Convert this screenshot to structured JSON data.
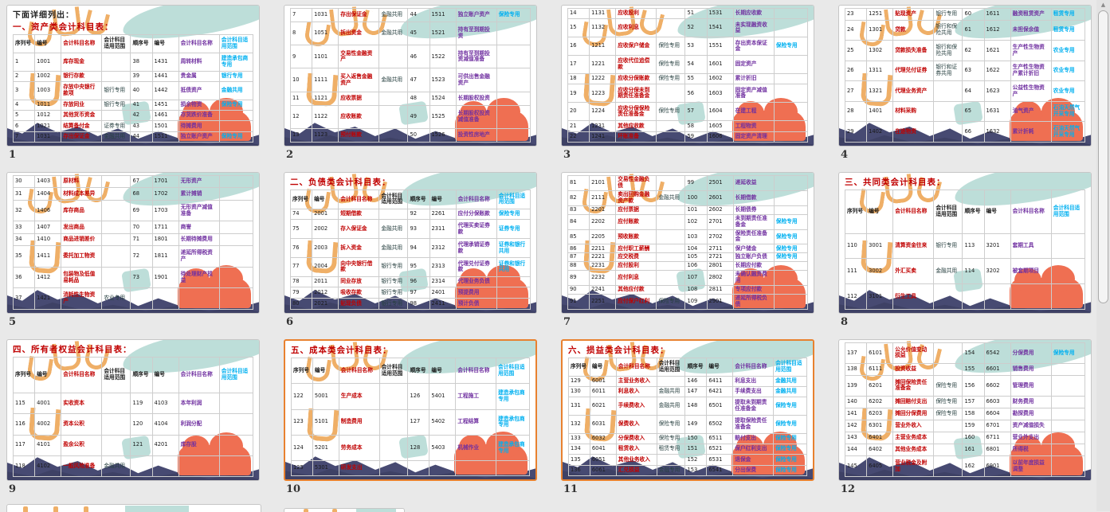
{
  "view": "slide-sorter",
  "colors": {
    "accent_orange": "#E8812F",
    "red": "#C00000",
    "purple": "#7030A0",
    "cyan": "#00B0F0",
    "scope_left": "#253E3E",
    "navy": "#474A72",
    "teal": "#BDDED9",
    "coral": "#EF6F52",
    "tan": "#EFAF67"
  },
  "scrollbar": {
    "up_arrow": "▲"
  },
  "table_headers": [
    "序列号",
    "编号",
    "会计科目名称",
    "会计科目适用范围",
    "顺序号",
    "编号",
    "会计科目名称",
    "会计科目适用范围"
  ],
  "slides": [
    {
      "number": "1",
      "selected": false,
      "pretitle": "下面详细列出：",
      "title": "一、资产类会计科目表：",
      "has_header": true,
      "rows": [
        [
          "1",
          "1001",
          "库存现金",
          "",
          "38",
          "1431",
          "周转材料",
          "建造承包商专用"
        ],
        [
          "2",
          "1002",
          "银行存款",
          "",
          "39",
          "1441",
          "贵金属",
          "银行专用"
        ],
        [
          "3",
          "1003",
          "存放中央银行款项",
          "银行专用",
          "40",
          "1442",
          "抵债资产",
          "金融共用"
        ],
        [
          "4",
          "1011",
          "存放同业",
          "银行专用",
          "41",
          "1451",
          "损余物资",
          "保险专用"
        ],
        [
          "5",
          "1012",
          "其他货币资金",
          "",
          "42",
          "1461",
          "存货跌价准备",
          ""
        ],
        [
          "6",
          "1021",
          "结算备付金",
          "证券专用",
          "43",
          "1501",
          "待摊费用",
          ""
        ],
        [
          "7",
          "1031",
          "存出保证金",
          "金融共用",
          "44",
          "1511",
          "独立账户资产",
          "保险专用"
        ]
      ]
    },
    {
      "number": "2",
      "selected": false,
      "has_header": false,
      "rows": [
        [
          "7",
          "1031",
          "存出保证金",
          "金融共用",
          "44",
          "1511",
          "独立账户资产",
          "保险专用"
        ],
        [
          "8",
          "1051",
          "拆出资金",
          "金融共用",
          "45",
          "1521",
          "持有至到期投资",
          ""
        ],
        [
          "9",
          "1101",
          "交易性金融资产",
          "",
          "46",
          "1522",
          "持有至到期投资减值准备",
          ""
        ],
        [
          "10",
          "1111",
          "买入返售金融资产",
          "金融共用",
          "47",
          "1523",
          "可供出售金融资产",
          ""
        ],
        [
          "11",
          "1121",
          "应收票据",
          "",
          "48",
          "1524",
          "长期股权投资",
          ""
        ],
        [
          "12",
          "1122",
          "应收账款",
          "",
          "49",
          "1525",
          "长期股权投资减值准备",
          ""
        ],
        [
          "13",
          "1123",
          "预付账款",
          "",
          "50",
          "1526",
          "投资性房地产",
          ""
        ]
      ]
    },
    {
      "number": "3",
      "selected": false,
      "has_header": false,
      "rows": [
        [
          "14",
          "1131",
          "应收股利",
          "",
          "51",
          "1531",
          "长期应收款",
          ""
        ],
        [
          "15",
          "1132",
          "应收利息",
          "",
          "52",
          "1541",
          "未实现融资收益",
          ""
        ],
        [
          "16",
          "1211",
          "应收保户储金",
          "保险专用",
          "53",
          "1551",
          "存出资本保证金",
          "保险专用"
        ],
        [
          "17",
          "1221",
          "应收代位追偿款",
          "保险专用",
          "54",
          "1601",
          "固定资产",
          ""
        ],
        [
          "18",
          "1222",
          "应收分保账款",
          "保险专用",
          "55",
          "1602",
          "累计折旧",
          ""
        ],
        [
          "19",
          "1223",
          "应收分保未到期责任准备金",
          "",
          "56",
          "1603",
          "固定资产减值准备",
          ""
        ],
        [
          "20",
          "1224",
          "应收分保保险责任准备金",
          "保险专用",
          "57",
          "1604",
          "在建工程",
          ""
        ],
        [
          "21",
          "1231",
          "其他应收款",
          "",
          "58",
          "1605",
          "工程物资",
          ""
        ],
        [
          "22",
          "1241",
          "坏账准备",
          "",
          "59",
          "1606",
          "固定资产清理",
          ""
        ]
      ]
    },
    {
      "number": "4",
      "selected": false,
      "has_header": false,
      "rows": [
        [
          "23",
          "1251",
          "贴现资产",
          "银行专用",
          "60",
          "1611",
          "融资租赁资产",
          "租赁专用"
        ],
        [
          "24",
          "1301",
          "贷款",
          "银行和保险共用",
          "61",
          "1612",
          "未担保余值",
          "租赁专用"
        ],
        [
          "25",
          "1302",
          "贷款损失准备",
          "银行和保险共用",
          "62",
          "1621",
          "生产性生物资产",
          "农业专用"
        ],
        [
          "26",
          "1311",
          "代理兑付证券",
          "银行和证券共用",
          "63",
          "1622",
          "生产性生物资产累计折旧",
          "农业专用"
        ],
        [
          "27",
          "1321",
          "代理业务资产",
          "",
          "64",
          "1623",
          "公益性生物资产",
          "农业专用"
        ],
        [
          "28",
          "1401",
          "材料采购",
          "",
          "65",
          "1631",
          "油气资产",
          "石油天然气开采专用"
        ],
        [
          "29",
          "1402",
          "在途物资",
          "",
          "66",
          "1632",
          "累计折耗",
          "石油天然气开采专用"
        ]
      ]
    },
    {
      "number": "5",
      "selected": false,
      "has_header": false,
      "rows": [
        [
          "30",
          "1403",
          "原材料",
          "",
          "67",
          "1701",
          "无形资产",
          ""
        ],
        [
          "31",
          "1404",
          "材料成本差异",
          "",
          "68",
          "1702",
          "累计摊销",
          ""
        ],
        [
          "32",
          "1406",
          "库存商品",
          "",
          "69",
          "1703",
          "无形资产减值准备",
          ""
        ],
        [
          "33",
          "1407",
          "发出商品",
          "",
          "70",
          "1711",
          "商誉",
          ""
        ],
        [
          "34",
          "1410",
          "商品进销差价",
          "",
          "71",
          "1801",
          "长期待摊费用",
          ""
        ],
        [
          "35",
          "1411",
          "委托加工物资",
          "",
          "72",
          "1811",
          "递延所得税资产",
          ""
        ],
        [
          "36",
          "1412",
          "包装物及低值易耗品",
          "",
          "73",
          "1901",
          "待处理财产损益",
          ""
        ],
        [
          "37",
          "1421",
          "消耗性生物资产",
          "农业专用",
          "",
          "",
          "",
          ""
        ]
      ]
    },
    {
      "number": "6",
      "selected": false,
      "title": "二、负债类会计科目表：",
      "has_header": true,
      "rows": [
        [
          "74",
          "2001",
          "短期借款",
          "",
          "92",
          "2261",
          "应付分保账款",
          "保险专用"
        ],
        [
          "75",
          "2002",
          "存入保证金",
          "金融共用",
          "93",
          "2311",
          "代理买卖证券款",
          "证券专用"
        ],
        [
          "76",
          "2003",
          "拆入资金",
          "金融共用",
          "94",
          "2312",
          "代理承销证券款",
          "证券和银行共用"
        ],
        [
          "77",
          "2004",
          "向中央银行借款",
          "银行专用",
          "95",
          "2313",
          "代理兑付证券款",
          "证券和银行共用"
        ],
        [
          "78",
          "2011",
          "同业存放",
          "银行专用",
          "96",
          "2314",
          "代理业务负债",
          ""
        ],
        [
          "79",
          "2012",
          "吸收存款",
          "银行专用",
          "97",
          "2401",
          "预提费用",
          ""
        ],
        [
          "80",
          "2021",
          "贴现负债",
          "银行专用",
          "98",
          "2411",
          "预计负债",
          ""
        ]
      ]
    },
    {
      "number": "7",
      "selected": false,
      "has_header": false,
      "rows": [
        [
          "81",
          "2101",
          "交易性金融负债",
          "",
          "99",
          "2501",
          "递延收益",
          ""
        ],
        [
          "82",
          "2111",
          "卖出回购金融资产款",
          "金融共用",
          "100",
          "2601",
          "长期借款",
          ""
        ],
        [
          "83",
          "2201",
          "应付票据",
          "",
          "101",
          "2602",
          "长期债券",
          ""
        ],
        [
          "84",
          "2202",
          "应付账款",
          "",
          "102",
          "2701",
          "未到期责任准备金",
          "保险专用"
        ],
        [
          "85",
          "2205",
          "预收账款",
          "",
          "103",
          "2702",
          "保险责任准备金",
          "保险专用"
        ],
        [
          "86",
          "2211",
          "应付职工薪酬",
          "",
          "104",
          "2711",
          "保户储金",
          "保险专用"
        ],
        [
          "87",
          "2221",
          "应交税费",
          "",
          "105",
          "2721",
          "独立账户负债",
          "保险专用"
        ],
        [
          "88",
          "2231",
          "应付股利",
          "",
          "106",
          "2801",
          "长期应付款",
          ""
        ],
        [
          "89",
          "2232",
          "应付利息",
          "",
          "107",
          "2802",
          "未确认融资费用",
          ""
        ],
        [
          "90",
          "2241",
          "其他应付款",
          "",
          "108",
          "2811",
          "专项应付款",
          ""
        ],
        [
          "91",
          "2251",
          "应付保户红利",
          "保险专用",
          "109",
          "2901",
          "递延所得税负债",
          ""
        ]
      ]
    },
    {
      "number": "8",
      "selected": false,
      "title": "三、共同类会计科目表：",
      "has_header": true,
      "rows": [
        [
          "110",
          "3001",
          "清算资金往来",
          "银行专用",
          "113",
          "3201",
          "套期工具",
          ""
        ],
        [
          "111",
          "3002",
          "外汇买卖",
          "金融共用",
          "114",
          "3202",
          "被套期项目",
          ""
        ],
        [
          "112",
          "3101",
          "衍生工具",
          "",
          "",
          "",
          "",
          ""
        ]
      ]
    },
    {
      "number": "9",
      "selected": false,
      "title": "四、所有者权益会计科目表：",
      "has_header": true,
      "rows": [
        [
          "115",
          "4001",
          "实收资本",
          "",
          "119",
          "4103",
          "本年利润",
          ""
        ],
        [
          "116",
          "4002",
          "资本公积",
          "",
          "120",
          "4104",
          "利润分配",
          ""
        ],
        [
          "117",
          "4101",
          "盈余公积",
          "",
          "121",
          "4201",
          "库存股",
          ""
        ],
        [
          "118",
          "4102",
          "一般风险准备",
          "金融共用",
          "",
          "",
          "",
          ""
        ]
      ]
    },
    {
      "number": "10",
      "selected": true,
      "title": "五、成本类会计科目表：",
      "has_header": true,
      "rows": [
        [
          "122",
          "5001",
          "生产成本",
          "",
          "126",
          "5401",
          "工程施工",
          "建造承包商专用"
        ],
        [
          "123",
          "5101",
          "制造费用",
          "",
          "127",
          "5402",
          "工程结算",
          "建造承包商专用"
        ],
        [
          "124",
          "5201",
          "劳务成本",
          "",
          "128",
          "5403",
          "机械作业",
          "建造承包商专用"
        ],
        [
          "125",
          "5301",
          "研发支出",
          "",
          "",
          "",
          "",
          ""
        ]
      ]
    },
    {
      "number": "11",
      "selected": true,
      "title": "六、损益类会计科目表：",
      "has_header": true,
      "rows": [
        [
          "129",
          "6001",
          "主营业务收入",
          "",
          "146",
          "6411",
          "利息支出",
          "金融共用"
        ],
        [
          "130",
          "6011",
          "利息收入",
          "金融共用",
          "147",
          "6421",
          "手续费支出",
          "金融共用"
        ],
        [
          "131",
          "6021",
          "手续费收入",
          "金融共用",
          "148",
          "6501",
          "提取未到期责任准备金",
          "保险专用"
        ],
        [
          "132",
          "6031",
          "保费收入",
          "保险专用",
          "149",
          "6502",
          "提取保险责任准备金",
          "保险专用"
        ],
        [
          "133",
          "6032",
          "分保费收入",
          "保险专用",
          "150",
          "6511",
          "赔付支出",
          "保险专用"
        ],
        [
          "134",
          "6041",
          "租赁收入",
          "租赁专用",
          "151",
          "6521",
          "保户红利支出",
          "保险专用"
        ],
        [
          "135",
          "6051",
          "其他业务收入",
          "",
          "152",
          "6531",
          "退保金",
          "保险专用"
        ],
        [
          "136",
          "6061",
          "汇兑损益",
          "金融专用",
          "153",
          "6541",
          "分出保费",
          "保险专用"
        ]
      ]
    },
    {
      "number": "12",
      "selected": false,
      "has_header": false,
      "rows": [
        [
          "137",
          "6101",
          "公允价值变动损益",
          "",
          "154",
          "6542",
          "分保费用",
          "保险专用"
        ],
        [
          "138",
          "6111",
          "投资收益",
          "",
          "155",
          "6601",
          "销售费用",
          ""
        ],
        [
          "139",
          "6201",
          "摊回保险责任准备金",
          "保险专用",
          "156",
          "6602",
          "管理费用",
          ""
        ],
        [
          "140",
          "6202",
          "摊回赔付支出",
          "保险专用",
          "157",
          "6603",
          "财务费用",
          ""
        ],
        [
          "141",
          "6203",
          "摊回分保费用",
          "保险专用",
          "158",
          "6604",
          "勘探费用",
          ""
        ],
        [
          "142",
          "6301",
          "营业外收入",
          "",
          "159",
          "6701",
          "资产减值损失",
          ""
        ],
        [
          "143",
          "6401",
          "主营业务成本",
          "",
          "160",
          "6711",
          "营业外支出",
          ""
        ],
        [
          "144",
          "6402",
          "其他业务成本",
          "",
          "161",
          "6801",
          "所得税",
          ""
        ],
        [
          "145",
          "6405",
          "营业税金及附加",
          "",
          "162",
          "6901",
          "以前年度损益调整",
          ""
        ]
      ]
    }
  ]
}
